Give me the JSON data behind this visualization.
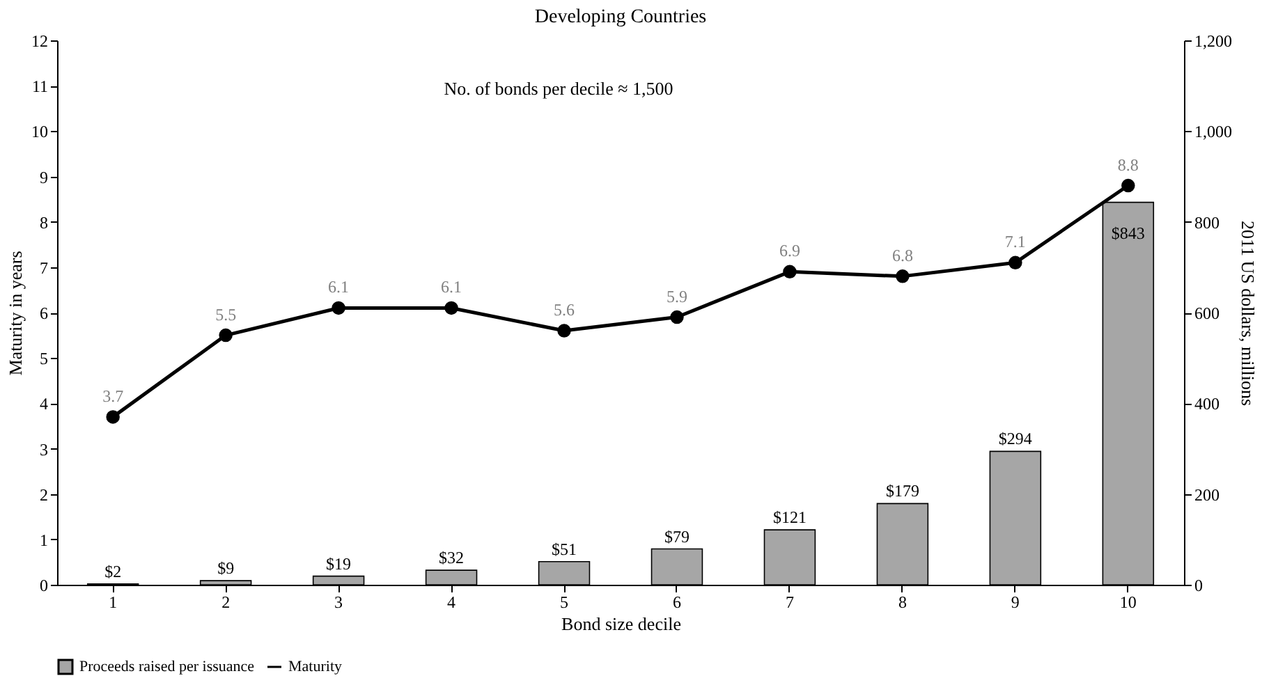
{
  "chart_data": {
    "type": "bar",
    "title": "Developing Countries",
    "xlabel": "Bond size decile",
    "ylabel": "Maturity in years",
    "y2label": "2011 US dollars, millions",
    "categories": [
      "1",
      "2",
      "3",
      "4",
      "5",
      "6",
      "7",
      "8",
      "9",
      "10"
    ],
    "series": [
      {
        "name": "Proceeds raised per issuance",
        "axis": "y2",
        "color": "#a6a6a6",
        "values": [
          2,
          9,
          19,
          32,
          51,
          79,
          121,
          179,
          294,
          843
        ],
        "value_labels": [
          "$2",
          "$9",
          "$19",
          "$32",
          "$51",
          "$79",
          "$121",
          "$179",
          "$294",
          "$843"
        ]
      },
      {
        "name": "Maturity",
        "type": "line",
        "color": "#000000",
        "values": [
          3.7,
          5.5,
          6.1,
          6.1,
          5.6,
          5.9,
          6.9,
          6.8,
          7.1,
          8.8
        ],
        "data_labels": true,
        "marker": "circle",
        "line_style": "solid"
      }
    ],
    "ylim": [
      0,
      12
    ],
    "yticks": [
      0,
      1,
      2,
      3,
      4,
      5,
      6,
      7,
      8,
      9,
      10,
      11,
      12
    ],
    "y2lim": [
      0,
      1200
    ],
    "y2ticks": [
      0,
      200,
      400,
      600,
      800,
      {
        "value": 1000,
        "label": "1,000"
      },
      {
        "value": 1200,
        "label": "1,200"
      }
    ],
    "annotations": [
      "No. of bonds per decile ≈ 1,500"
    ],
    "grid": false,
    "legend": "bottom"
  }
}
